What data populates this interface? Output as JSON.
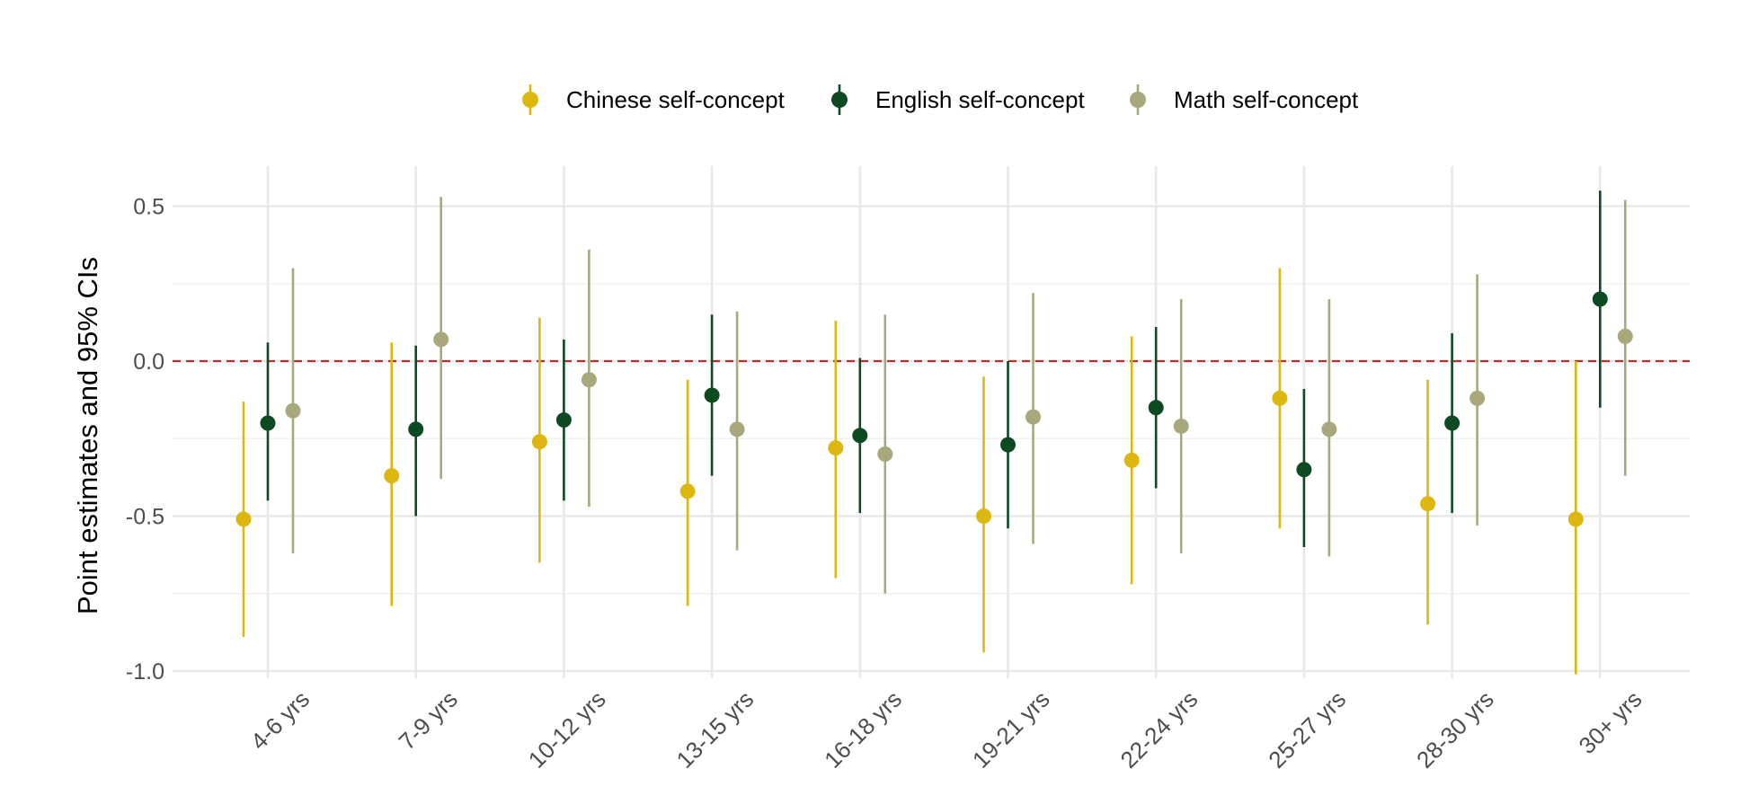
{
  "chart_data": {
    "type": "errorbar",
    "title": "",
    "xlabel": "",
    "ylabel": "Point estimates and 95% CIs",
    "ylim": [
      -1.05,
      0.62
    ],
    "yticks": [
      0.5,
      0.0,
      -0.5,
      -1.0
    ],
    "ytick_labels": [
      "0.5",
      "0.0",
      "-0.5",
      "-1.0"
    ],
    "reference_line": {
      "y": 0.0,
      "style": "dashed",
      "color": "#b5302a"
    },
    "grid": true,
    "legend_position": "top",
    "categories": [
      "4-6 yrs",
      "7-9 yrs",
      "10-12 yrs",
      "13-15 yrs",
      "16-18 yrs",
      "19-21 yrs",
      "22-24 yrs",
      "25-27 yrs",
      "28-30 yrs",
      "30+ yrs"
    ],
    "series": [
      {
        "name": "Chinese self-concept",
        "color": "#DDB710",
        "estimates": [
          -0.51,
          -0.37,
          -0.26,
          -0.42,
          -0.28,
          -0.5,
          -0.32,
          -0.12,
          -0.46,
          -0.51
        ],
        "ci_low": [
          -0.89,
          -0.79,
          -0.65,
          -0.79,
          -0.7,
          -0.94,
          -0.72,
          -0.54,
          -0.85,
          -1.01
        ],
        "ci_high": [
          -0.13,
          0.06,
          0.14,
          -0.06,
          0.13,
          -0.05,
          0.08,
          0.3,
          -0.06,
          0.0
        ]
      },
      {
        "name": "English self-concept",
        "color": "#0D4A22",
        "estimates": [
          -0.2,
          -0.22,
          -0.19,
          -0.11,
          -0.24,
          -0.27,
          -0.15,
          -0.35,
          -0.2,
          0.2
        ],
        "ci_low": [
          -0.45,
          -0.5,
          -0.45,
          -0.37,
          -0.49,
          -0.54,
          -0.41,
          -0.6,
          -0.49,
          -0.15
        ],
        "ci_high": [
          0.06,
          0.05,
          0.07,
          0.15,
          0.01,
          0.0,
          0.11,
          -0.09,
          0.09,
          0.55
        ]
      },
      {
        "name": "Math self-concept",
        "color": "#A8A87C",
        "estimates": [
          -0.16,
          0.07,
          -0.06,
          -0.22,
          -0.3,
          -0.18,
          -0.21,
          -0.22,
          -0.12,
          0.08
        ],
        "ci_low": [
          -0.62,
          -0.38,
          -0.47,
          -0.61,
          -0.75,
          -0.59,
          -0.62,
          -0.63,
          -0.53,
          -0.37
        ],
        "ci_high": [
          0.3,
          0.53,
          0.36,
          0.16,
          0.15,
          0.22,
          0.2,
          0.2,
          0.28,
          0.52
        ]
      }
    ]
  }
}
